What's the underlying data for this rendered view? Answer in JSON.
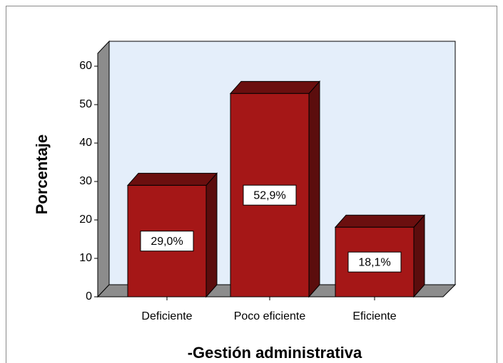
{
  "chart_data": {
    "type": "bar",
    "x_label": "-Gestión administrativa",
    "y_label": "Porcentaje",
    "categories": [
      "Deficiente",
      "Poco eficiente",
      "Eficiente"
    ],
    "values": [
      29.0,
      52.9,
      18.1
    ],
    "value_labels": [
      "29,0%",
      "52,9%",
      "18,1%"
    ],
    "color": "#a51717",
    "ylim": [
      0,
      60
    ],
    "yticks": [
      0,
      10,
      20,
      30,
      40,
      50,
      60
    ]
  }
}
